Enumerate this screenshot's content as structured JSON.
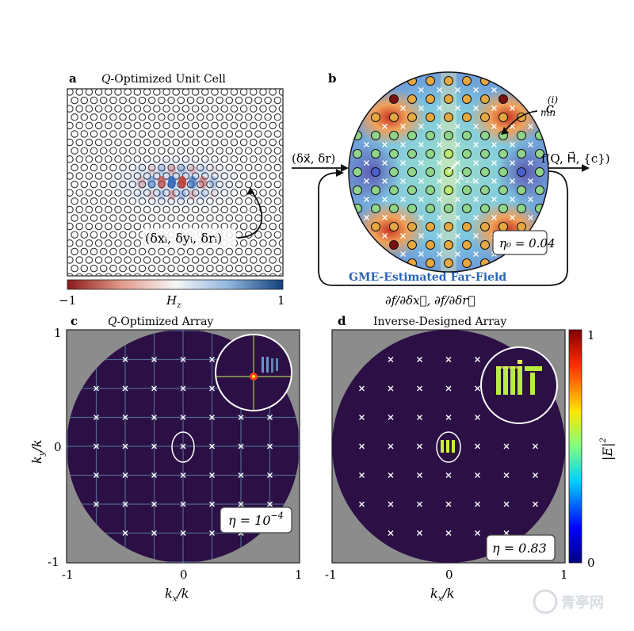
{
  "panels": {
    "a": {
      "letter": "a",
      "title": "Q-Optimized Unit Cell",
      "title_q": "Q",
      "title_rest": "-Optimized Unit Cell",
      "perturbation": "(δxᵢ, δyᵢ, δrᵢ)",
      "colorbar": {
        "min": "−1",
        "max": "1",
        "label": "H",
        "label_sub": "z"
      }
    },
    "b": {
      "letter": "b",
      "coefficient": "c",
      "coefficient_sup": "(i)",
      "coefficient_sub": "mn",
      "input": "(δx⃗, δr)",
      "output": "f(Q, H⃗, {c})",
      "k_label": "k",
      "k_sub": "⊥,i",
      "efficiency": "η₀ = 0.04",
      "caption": "GME-Estimated Far-Field",
      "gradient": "∂f/∂δx⃗,  ∂f/∂δr⃗"
    },
    "c": {
      "letter": "c",
      "title_q": "Q",
      "title_rest": "-Optimized Array",
      "efficiency_base": "η = 10",
      "efficiency_exp": "−4"
    },
    "d": {
      "letter": "d",
      "title": "Inverse-Designed Array",
      "efficiency": "η = 0.83"
    }
  },
  "axes": {
    "ylabel": "ky/k",
    "ylabel_k": "k",
    "ylabel_sub": "y",
    "ylabel_den": "/k",
    "xlabel_k": "k",
    "xlabel_sub": "x",
    "xlabel_den": "/k",
    "ticks": [
      "-1",
      "0",
      "1"
    ],
    "yticks": [
      "1",
      "0",
      "-1"
    ]
  },
  "colorbar_e": {
    "max": "1",
    "min": "0",
    "label": "|E|",
    "label_sup": "2"
  },
  "watermark": "青亭网",
  "colors": {
    "farfield_bg": "#2b0f45",
    "gray": "#8c8c8c",
    "caption": "#2a63b8"
  }
}
